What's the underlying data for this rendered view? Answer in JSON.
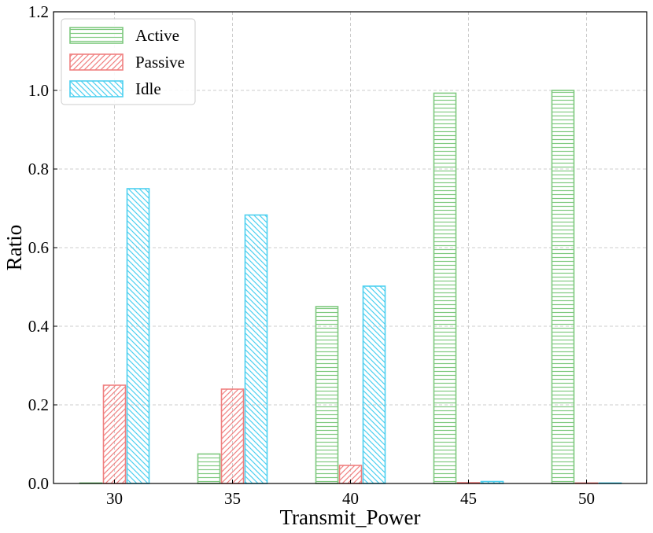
{
  "chart_data": {
    "type": "bar",
    "xlabel": "Transmit_Power",
    "ylabel": "Ratio",
    "categories": [
      "30",
      "35",
      "40",
      "45",
      "50"
    ],
    "ylim": [
      0,
      1.2
    ],
    "yticks": [
      "0.0",
      "0.2",
      "0.4",
      "0.6",
      "0.8",
      "1.0",
      "1.2"
    ],
    "grid": true,
    "legend_position": "top-left",
    "series": [
      {
        "name": "Active",
        "values": [
          0.0,
          0.075,
          0.45,
          0.993,
          1.0
        ],
        "color": "#7fc97f",
        "hatch": "horizontal"
      },
      {
        "name": "Passive",
        "values": [
          0.25,
          0.24,
          0.046,
          0.002,
          0.0
        ],
        "color": "#f08080",
        "hatch": "diagonal-up"
      },
      {
        "name": "Idle",
        "values": [
          0.75,
          0.683,
          0.502,
          0.005,
          0.0
        ],
        "color": "#4dd0f0",
        "hatch": "diagonal-down"
      }
    ]
  }
}
